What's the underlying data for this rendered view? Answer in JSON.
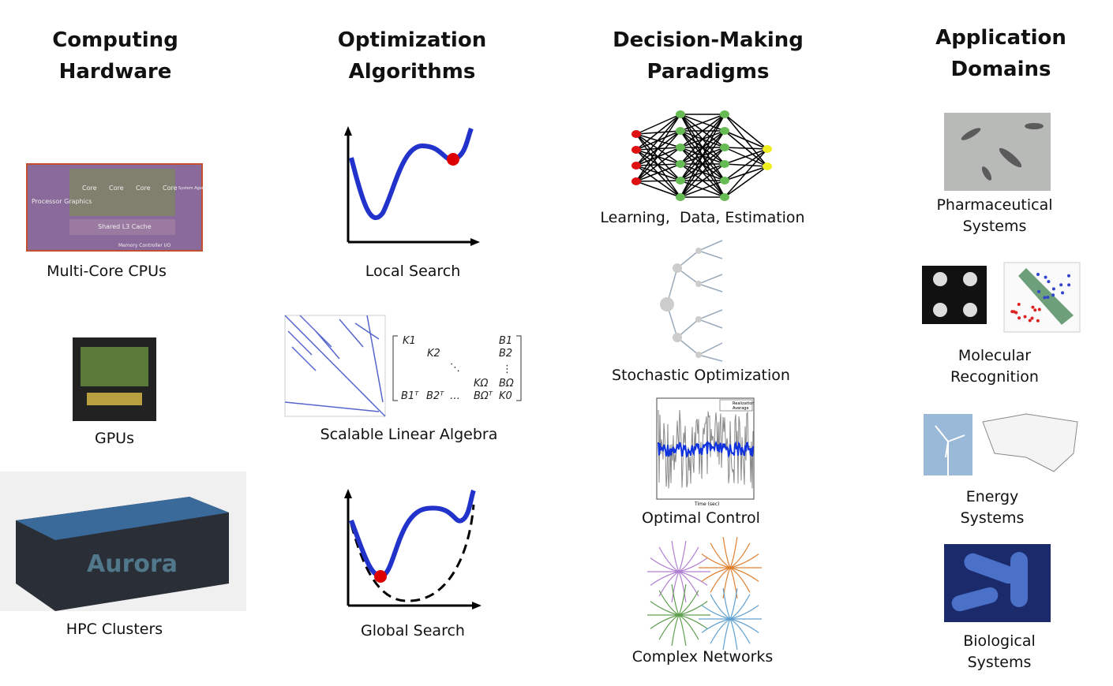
{
  "columns": [
    {
      "title": "Computing Hardware",
      "items": [
        {
          "label": "Multi-Core CPUs"
        },
        {
          "label": "GPUs"
        },
        {
          "label": "HPC Clusters"
        }
      ]
    },
    {
      "title": "Optimization Algorithms",
      "items": [
        {
          "label": "Local Search"
        },
        {
          "label": "Scalable Linear Algebra"
        },
        {
          "label": "Global Search"
        }
      ]
    },
    {
      "title": "Decision-Making Paradigms",
      "items": [
        {
          "label": "Learning,  Data, Estimation"
        },
        {
          "label": "Stochastic Optimization"
        },
        {
          "label": "Optimal Control"
        },
        {
          "label": "Complex Networks"
        }
      ]
    },
    {
      "title": "Application Domains",
      "items": [
        {
          "label": "Pharmaceutical Systems"
        },
        {
          "label": "Molecular Recognition"
        },
        {
          "label": "Energy Systems"
        },
        {
          "label": "Biological Systems"
        }
      ]
    }
  ],
  "cpu_labels": [
    "Core",
    "Core",
    "Core",
    "Core",
    "Processor Graphics",
    "Shared L3 Cache",
    "Memory Controller I/O",
    "System Agent"
  ],
  "cluster_label": "Aurora",
  "matrix_entries": [
    "K1",
    "K2",
    "KΩ",
    "B1",
    "B2",
    "BΩ",
    "K0",
    "B1ᵀ",
    "B2ᵀ",
    "BΩᵀ",
    "…",
    "⋱",
    "⋮"
  ],
  "plot_legend": [
    "Realization",
    "Average"
  ],
  "plot_xlabel": "Time (sec)"
}
